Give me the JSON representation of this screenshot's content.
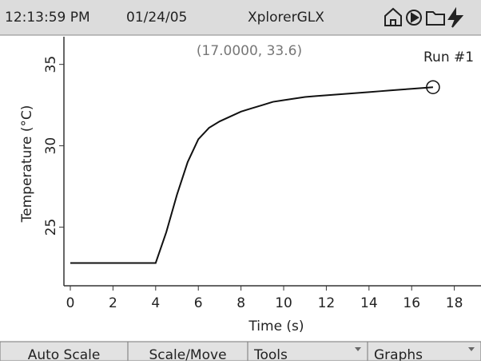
{
  "header": {
    "time": "12:13:59 PM",
    "date": "01/24/05",
    "title": "XplorerGLX"
  },
  "chart_data": {
    "type": "line",
    "annotation": "(17.0000, 33.6)",
    "run_label": "Run #1",
    "x_label": "Time (s)",
    "y_label": "Temperature (°C)",
    "x": [
      0,
      0.5,
      1,
      1.5,
      2,
      2.5,
      3,
      3.5,
      4,
      4.5,
      5,
      5.5,
      6,
      6.5,
      7,
      7.5,
      8,
      8.5,
      9,
      9.5,
      10,
      10.5,
      11,
      11.5,
      12,
      12.5,
      13,
      13.5,
      14,
      14.5,
      15,
      15.5,
      16,
      16.5,
      17
    ],
    "series": [
      {
        "name": "Run #1",
        "color": "#111111",
        "values": [
          22.8,
          22.8,
          22.8,
          22.8,
          22.8,
          22.8,
          22.8,
          22.8,
          22.8,
          24.7,
          27.0,
          29.0,
          30.4,
          31.1,
          31.5,
          31.8,
          32.1,
          32.3,
          32.5,
          32.7,
          32.8,
          32.9,
          33.0,
          33.05,
          33.1,
          33.15,
          33.2,
          33.25,
          33.3,
          33.35,
          33.4,
          33.45,
          33.5,
          33.55,
          33.6
        ]
      }
    ],
    "xlim": [
      -0.3,
      19.25
    ],
    "ylim": [
      21.4,
      36.7
    ],
    "xticks": [
      0,
      2,
      4,
      6,
      8,
      10,
      12,
      14,
      16,
      18
    ],
    "yticks": [
      25,
      30,
      35
    ]
  },
  "toolbar": {
    "buttons": [
      "Auto Scale",
      "Scale/Move",
      "Tools",
      "Graphs"
    ]
  }
}
